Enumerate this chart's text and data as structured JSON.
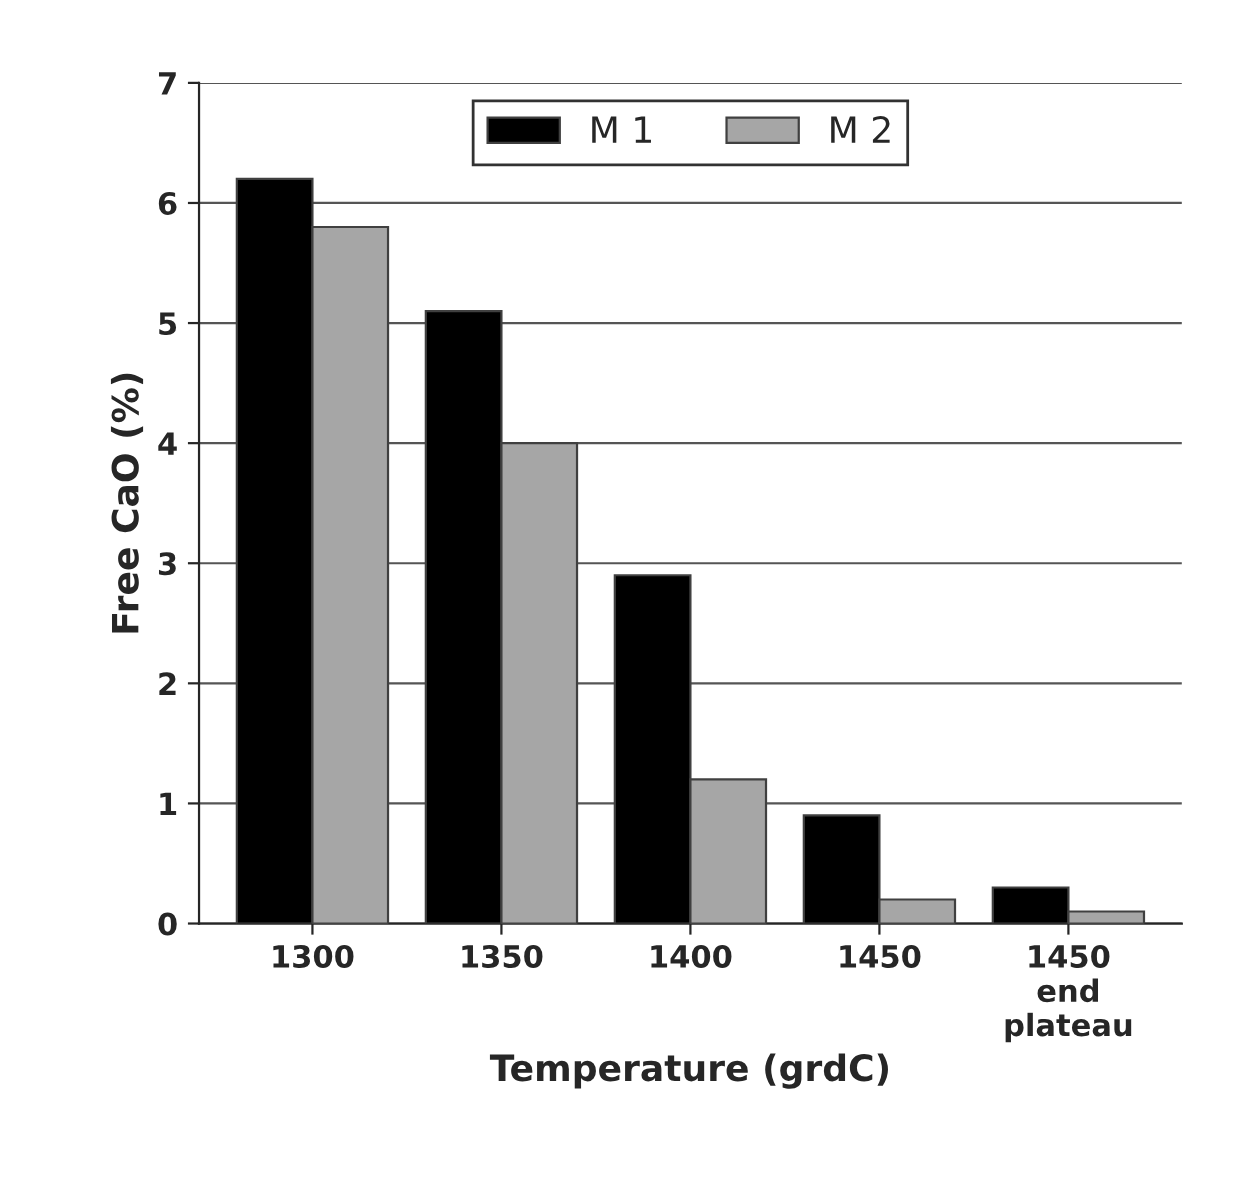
{
  "chart_data": {
    "type": "bar",
    "xlabel": "Temperature (grdC)",
    "ylabel": "Free CaO (%)",
    "categories": [
      "1300",
      "1350",
      "1400",
      "1450",
      "1450\nend\nplateau"
    ],
    "series": [
      {
        "name": "M 1",
        "color": "#000000",
        "values": [
          6.2,
          5.1,
          2.9,
          0.9,
          0.3
        ]
      },
      {
        "name": "M 2",
        "color": "#a6a6a6",
        "values": [
          5.8,
          4.0,
          1.2,
          0.2,
          0.1
        ]
      }
    ],
    "ylim": [
      0,
      7
    ],
    "yticks": [
      0,
      1,
      2,
      3,
      4,
      5,
      6,
      7
    ],
    "grid": "y",
    "legend": "top"
  }
}
